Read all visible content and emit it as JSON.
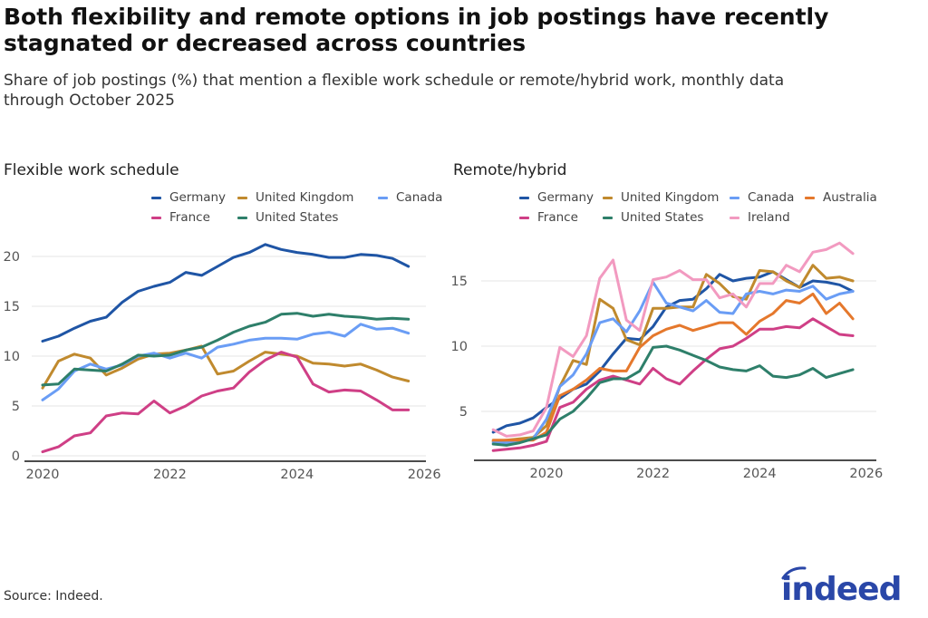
{
  "header": {
    "title": "Both flexibility and remote options in job postings have recently stagnated or decreased across countries",
    "subtitle": "Share of job postings (%) that mention a flexible work schedule or remote/hybrid work, monthly data through October 2025"
  },
  "footer": {
    "source": "Source: Indeed.",
    "logo_text": "indeed",
    "logo_color": "#2a47a8"
  },
  "chart_data": [
    {
      "type": "line",
      "title": "Flexible work schedule",
      "xlabel": "",
      "ylabel": "",
      "xlim": [
        "2020-01",
        "2026-01"
      ],
      "ylim": [
        0,
        22
      ],
      "x_ticks": [
        "2020",
        "2022",
        "2024",
        "2026"
      ],
      "y_ticks": [
        0,
        5,
        10,
        15,
        20
      ],
      "grid": true,
      "legend_placement": "top",
      "x": [
        "2020-01",
        "2020-04",
        "2020-07",
        "2020-10",
        "2021-01",
        "2021-04",
        "2021-07",
        "2021-10",
        "2022-01",
        "2022-04",
        "2022-07",
        "2022-10",
        "2023-01",
        "2023-04",
        "2023-07",
        "2023-10",
        "2024-01",
        "2024-04",
        "2024-07",
        "2024-10",
        "2025-01",
        "2025-04",
        "2025-07",
        "2025-10"
      ],
      "series": [
        {
          "name": "Germany",
          "color": "#1f55a5",
          "values": [
            11.5,
            12.0,
            12.8,
            13.5,
            13.9,
            15.4,
            16.5,
            17.0,
            17.4,
            18.4,
            18.1,
            19.0,
            19.9,
            20.4,
            21.2,
            20.7,
            20.4,
            20.2,
            19.9,
            19.9,
            20.2,
            20.1,
            19.8,
            19.0
          ]
        },
        {
          "name": "United Kingdom",
          "color": "#c08a2e",
          "values": [
            6.8,
            9.5,
            10.2,
            9.8,
            8.1,
            8.8,
            9.7,
            10.2,
            10.3,
            10.6,
            11.0,
            8.2,
            8.5,
            9.5,
            10.4,
            10.2,
            10.0,
            9.3,
            9.2,
            9.0,
            9.2,
            8.6,
            7.9,
            7.5
          ]
        },
        {
          "name": "Canada",
          "color": "#6a9df5",
          "values": [
            5.6,
            6.7,
            8.5,
            9.2,
            8.7,
            9.1,
            10.0,
            10.3,
            9.8,
            10.3,
            9.8,
            10.9,
            11.2,
            11.6,
            11.8,
            11.8,
            11.7,
            12.2,
            12.4,
            12.0,
            13.2,
            12.7,
            12.8,
            12.3
          ]
        },
        {
          "name": "France",
          "color": "#cf3f86",
          "values": [
            0.4,
            0.9,
            2.0,
            2.3,
            4.0,
            4.3,
            4.2,
            5.5,
            4.3,
            5.0,
            6.0,
            6.5,
            6.8,
            8.4,
            9.6,
            10.4,
            9.9,
            7.2,
            6.4,
            6.6,
            6.5,
            5.6,
            4.6,
            4.6
          ]
        },
        {
          "name": "United States",
          "color": "#2e7f6a",
          "values": [
            7.1,
            7.2,
            8.7,
            8.6,
            8.5,
            9.2,
            10.1,
            10.0,
            10.1,
            10.6,
            10.9,
            11.6,
            12.4,
            13.0,
            13.4,
            14.2,
            14.3,
            14.0,
            14.2,
            14.0,
            13.9,
            13.7,
            13.8,
            13.7
          ]
        }
      ]
    },
    {
      "type": "line",
      "title": "Remote/hybrid",
      "xlabel": "",
      "ylabel": "",
      "xlim": [
        "2019-01",
        "2026-01"
      ],
      "ylim": [
        1.25,
        18.5
      ],
      "x_ticks": [
        "2020",
        "2022",
        "2024",
        "2026"
      ],
      "y_ticks": [
        5,
        10,
        15
      ],
      "grid": true,
      "legend_placement": "top",
      "x": [
        "2019-01",
        "2019-04",
        "2019-07",
        "2019-10",
        "2020-01",
        "2020-04",
        "2020-07",
        "2020-10",
        "2021-01",
        "2021-04",
        "2021-07",
        "2021-10",
        "2022-01",
        "2022-04",
        "2022-07",
        "2022-10",
        "2023-01",
        "2023-04",
        "2023-07",
        "2023-10",
        "2024-01",
        "2024-04",
        "2024-07",
        "2024-10",
        "2025-01",
        "2025-04",
        "2025-07",
        "2025-10"
      ],
      "series": [
        {
          "name": "Germany",
          "color": "#1f55a5",
          "values": [
            3.4,
            3.9,
            4.1,
            4.5,
            5.3,
            6.0,
            6.7,
            7.1,
            8.1,
            9.4,
            10.6,
            10.5,
            11.5,
            13.0,
            13.5,
            13.6,
            14.4,
            15.5,
            15.0,
            15.2,
            15.3,
            15.7,
            15.1,
            14.5,
            15.0,
            14.9,
            14.7,
            14.2
          ]
        },
        {
          "name": "United Kingdom",
          "color": "#c08a2e",
          "values": [
            2.7,
            2.8,
            2.9,
            3.0,
            3.9,
            6.9,
            8.9,
            8.6,
            13.6,
            12.9,
            10.5,
            10.1,
            12.9,
            12.9,
            13.0,
            13.0,
            15.5,
            14.8,
            13.8,
            13.6,
            15.8,
            15.7,
            15.0,
            14.5,
            16.2,
            15.2,
            15.3,
            15.0
          ]
        },
        {
          "name": "Canada",
          "color": "#6a9df5",
          "values": [
            2.6,
            2.6,
            2.7,
            2.9,
            4.4,
            6.9,
            7.8,
            9.4,
            11.8,
            12.1,
            11.1,
            12.7,
            14.9,
            13.3,
            13.0,
            12.7,
            13.5,
            12.6,
            12.5,
            14.0,
            14.2,
            14.0,
            14.3,
            14.2,
            14.6,
            13.6,
            14.0,
            14.2
          ]
        },
        {
          "name": "Australia",
          "color": "#e5782c",
          "values": [
            2.8,
            2.8,
            2.8,
            2.8,
            3.4,
            6.2,
            6.7,
            7.4,
            8.3,
            8.1,
            8.1,
            9.9,
            10.8,
            11.3,
            11.6,
            11.2,
            11.5,
            11.8,
            11.8,
            10.9,
            11.9,
            12.5,
            13.5,
            13.3,
            14.0,
            12.5,
            13.3,
            12.1
          ]
        },
        {
          "name": "France",
          "color": "#cf3f86",
          "values": [
            2.0,
            2.1,
            2.2,
            2.4,
            2.7,
            5.3,
            5.7,
            6.7,
            7.4,
            7.7,
            7.4,
            7.1,
            8.3,
            7.5,
            7.1,
            8.1,
            9.0,
            9.8,
            10.0,
            10.6,
            11.3,
            11.3,
            11.5,
            11.4,
            12.1,
            11.5,
            10.9,
            10.8
          ]
        },
        {
          "name": "United States",
          "color": "#2e7f6a",
          "values": [
            2.5,
            2.4,
            2.6,
            2.9,
            3.2,
            4.4,
            5.0,
            6.0,
            7.2,
            7.5,
            7.5,
            8.1,
            9.9,
            10.0,
            9.7,
            9.3,
            8.9,
            8.4,
            8.2,
            8.1,
            8.5,
            7.7,
            7.6,
            7.8,
            8.3,
            7.6,
            7.9,
            8.2
          ]
        },
        {
          "name": "Ireland",
          "color": "#f29ac0",
          "values": [
            3.6,
            3.1,
            3.2,
            3.5,
            5.3,
            9.9,
            9.2,
            10.8,
            15.2,
            16.6,
            12.0,
            11.2,
            15.1,
            15.3,
            15.8,
            15.1,
            15.1,
            13.7,
            14.0,
            13.0,
            14.8,
            14.8,
            16.2,
            15.7,
            17.2,
            17.4,
            17.9,
            17.1
          ]
        }
      ]
    }
  ]
}
